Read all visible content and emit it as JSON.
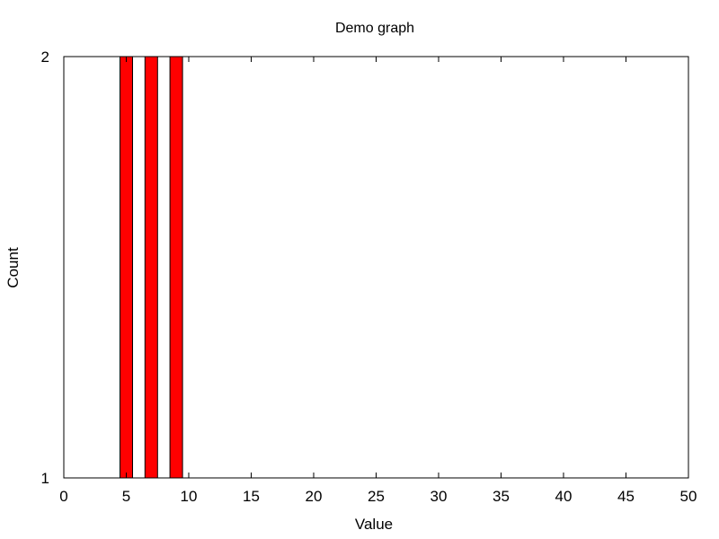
{
  "chart_data": {
    "type": "bar",
    "title": "Demo graph",
    "xlabel": "Value",
    "ylabel": "Count",
    "xlim": [
      0,
      50
    ],
    "ylim": [
      1,
      2
    ],
    "xticks": [
      "0",
      "5",
      "10",
      "15",
      "20",
      "25",
      "30",
      "35",
      "40",
      "45",
      "50"
    ],
    "yticks": [
      "1",
      "2"
    ],
    "x": [
      5,
      7,
      9
    ],
    "values": [
      2,
      2,
      2
    ],
    "bar_color": "#ff0000",
    "bar_edge_color": "#000000",
    "grid": false,
    "legend": false
  }
}
